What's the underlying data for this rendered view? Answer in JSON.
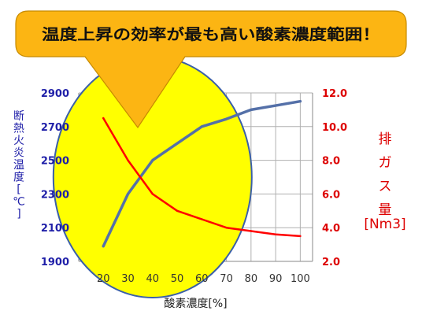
{
  "callout": {
    "text": "温度上昇の効率が最も高い酸素濃度範囲！"
  },
  "chart_data": {
    "type": "line",
    "x": [
      20,
      30,
      40,
      50,
      60,
      70,
      80,
      90,
      100
    ],
    "xlabel": "酸素濃度[%]",
    "x_ticks": [
      "20",
      "30",
      "40",
      "50",
      "60",
      "70",
      "80",
      "90",
      "100"
    ],
    "y_left": {
      "label": "断熱火炎温度[℃]",
      "label_chars": [
        "断",
        "熱",
        "火",
        "炎",
        "温",
        "度",
        "[",
        "℃",
        "]"
      ],
      "ylim": [
        1900,
        2900
      ],
      "ticks": [
        "1900",
        "2100",
        "2300",
        "2500",
        "2700",
        "2900"
      ],
      "tick_values": [
        1900,
        2100,
        2300,
        2500,
        2700,
        2900
      ]
    },
    "y_right": {
      "label": "排ガス量[Nm3]",
      "label_chars": [
        "排",
        "ガ",
        "ス",
        "量",
        "[Nm3]"
      ],
      "ylim": [
        2.0,
        12.0
      ],
      "ticks": [
        "2.0",
        "4.0",
        "6.0",
        "8.0",
        "10.0",
        "12.0"
      ],
      "tick_values": [
        2,
        4,
        6,
        8,
        10,
        12
      ]
    },
    "series": [
      {
        "axis": "left",
        "color": "#5470a8",
        "values": [
          1990,
          2300,
          2500,
          2600,
          2700,
          2745,
          2800,
          2825,
          2850
        ]
      },
      {
        "axis": "right",
        "color": "#ff0000",
        "values": [
          10.5,
          8.0,
          6.0,
          5.0,
          4.5,
          4.0,
          3.8,
          3.6,
          3.5
        ]
      }
    ],
    "grid": true,
    "highlight_range": [
      30,
      50
    ],
    "colors": {
      "left_axis": "#1f1fa8",
      "right_axis": "#dd0000",
      "highlight_fill": "#ffff00",
      "highlight_stroke": "#3a5fa8",
      "callout_fill": "#fcb513"
    }
  }
}
